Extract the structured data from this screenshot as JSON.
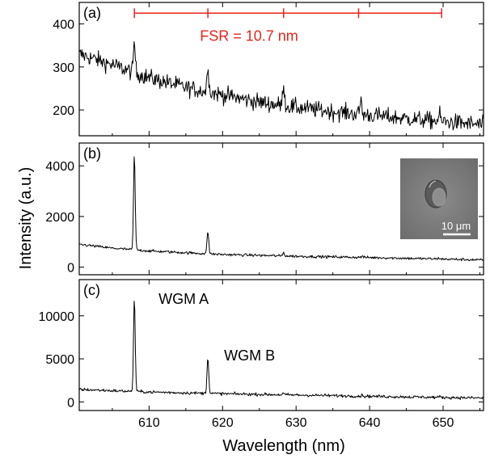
{
  "chart_data": {
    "type": "line",
    "xlabel": "Wavelength (nm)",
    "ylabel": "Intensity (a.u.)",
    "xlim": [
      600.5,
      655.5
    ],
    "xticks": [
      610,
      620,
      630,
      640,
      650
    ],
    "panels": [
      {
        "id": "a",
        "label": "(a)",
        "ylim": [
          140,
          450
        ],
        "yticks": [
          200,
          300,
          400
        ],
        "baseline": [
          [
            600.5,
            330
          ],
          [
            605,
            305
          ],
          [
            610,
            275
          ],
          [
            615,
            252
          ],
          [
            620,
            235
          ],
          [
            625,
            218
          ],
          [
            630,
            206
          ],
          [
            635,
            196
          ],
          [
            640,
            188
          ],
          [
            645,
            180
          ],
          [
            650,
            173
          ],
          [
            655.5,
            165
          ]
        ],
        "noise": 14,
        "peaks": [
          {
            "x": 608.0,
            "y": 360
          },
          {
            "x": 618.0,
            "y": 310
          },
          {
            "x": 628.3,
            "y": 265
          },
          {
            "x": 638.8,
            "y": 225
          },
          {
            "x": 649.5,
            "y": 190
          }
        ],
        "fsr": {
          "text": "FSR = 10.7 nm",
          "color": "#e8241c",
          "positions": [
            608.0,
            618.0,
            628.3,
            638.5,
            649.8
          ],
          "level": 425
        }
      },
      {
        "id": "b",
        "label": "(b)",
        "ylim": [
          -300,
          4900
        ],
        "yticks": [
          0,
          2000,
          4000
        ],
        "baseline": [
          [
            600.5,
            900
          ],
          [
            605,
            750
          ],
          [
            610,
            640
          ],
          [
            620,
            500
          ],
          [
            630,
            430
          ],
          [
            640,
            380
          ],
          [
            650,
            320
          ],
          [
            655.5,
            280
          ]
        ],
        "noise": 18,
        "peaks": [
          {
            "x": 608.0,
            "y": 4450
          },
          {
            "x": 618.0,
            "y": 1430
          },
          {
            "x": 628.3,
            "y": 580
          },
          {
            "x": 639.0,
            "y": 440
          },
          {
            "x": 649.5,
            "y": 360
          }
        ],
        "inset": {
          "scale_label": "10 μm"
        }
      },
      {
        "id": "c",
        "label": "(c)",
        "ylim": [
          -1000,
          14200
        ],
        "yticks": [
          0,
          5000,
          10000
        ],
        "baseline": [
          [
            600.5,
            1450
          ],
          [
            605,
            1300
          ],
          [
            610,
            1150
          ],
          [
            620,
            950
          ],
          [
            630,
            800
          ],
          [
            640,
            650
          ],
          [
            650,
            520
          ],
          [
            655.5,
            450
          ]
        ],
        "noise": 20,
        "peaks": [
          {
            "x": 608.0,
            "y": 12200
          },
          {
            "x": 618.0,
            "y": 5300
          },
          {
            "x": 628.3,
            "y": 980
          },
          {
            "x": 639.0,
            "y": 780
          },
          {
            "x": 649.5,
            "y": 600
          }
        ],
        "annotations": [
          {
            "text": "WGM A",
            "x": 611.3,
            "y": 11400
          },
          {
            "text": "WGM B",
            "x": 620.2,
            "y": 4800
          }
        ]
      }
    ]
  }
}
